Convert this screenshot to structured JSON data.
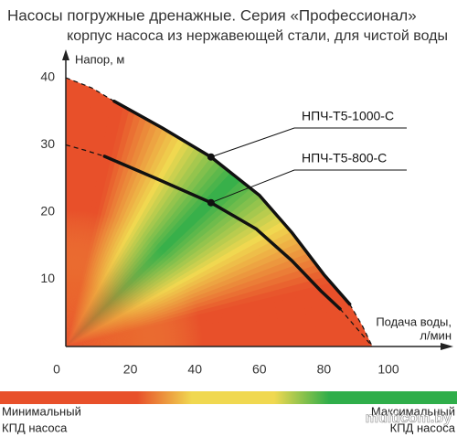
{
  "chart_data": {
    "type": "line",
    "title": "Насосы погружные дренажные. Серия «Профессионал»",
    "subtitle": "корпус насоса из нержавеющей стали, для чистой воды",
    "ylabel": "Напор, м",
    "xlabel": [
      "Подача воды,",
      "л/мин"
    ],
    "xlim": [
      0,
      100
    ],
    "ylim": [
      0,
      40
    ],
    "xticks": [
      0,
      20,
      40,
      60,
      80,
      100
    ],
    "yticks": [
      10,
      20,
      30,
      40
    ],
    "series": [
      {
        "name": "НПЧ-Т5-1000-С",
        "color": "#111111",
        "x": [
          15,
          30,
          45,
          60,
          70,
          80,
          88
        ],
        "values": [
          36.5,
          32.5,
          28.2,
          22.5,
          17,
          10.7,
          6.3
        ],
        "marker": {
          "x": 45,
          "y": 28.2
        },
        "dashed": {
          "head_x": [
            0,
            8,
            15
          ],
          "head_values": [
            40,
            38.5,
            36.5
          ],
          "tail_x": [
            88,
            92,
            95
          ],
          "tail_values": [
            6.3,
            3,
            0
          ]
        }
      },
      {
        "name": "НПЧ-Т5-800-С",
        "color": "#111111",
        "x": [
          12,
          28,
          45,
          59,
          70,
          79,
          85
        ],
        "values": [
          28.3,
          25,
          21.4,
          17.5,
          12.8,
          8.3,
          5.6
        ],
        "marker": {
          "x": 45,
          "y": 21.4
        },
        "dashed": {
          "head_x": [
            0,
            6,
            12
          ],
          "head_values": [
            30,
            29.2,
            28.3
          ],
          "tail_x": [
            85,
            90,
            95
          ],
          "tail_values": [
            5.6,
            2.8,
            0
          ]
        }
      }
    ],
    "efficiency_bar": {
      "colors": [
        "#e8502a",
        "#f0d850",
        "#2fae4a"
      ],
      "min_label": [
        "Минимальный",
        "КПД насоса"
      ],
      "max_label": [
        "Максимальный",
        "КПД насоса"
      ]
    },
    "watermark": "multicom.by"
  }
}
